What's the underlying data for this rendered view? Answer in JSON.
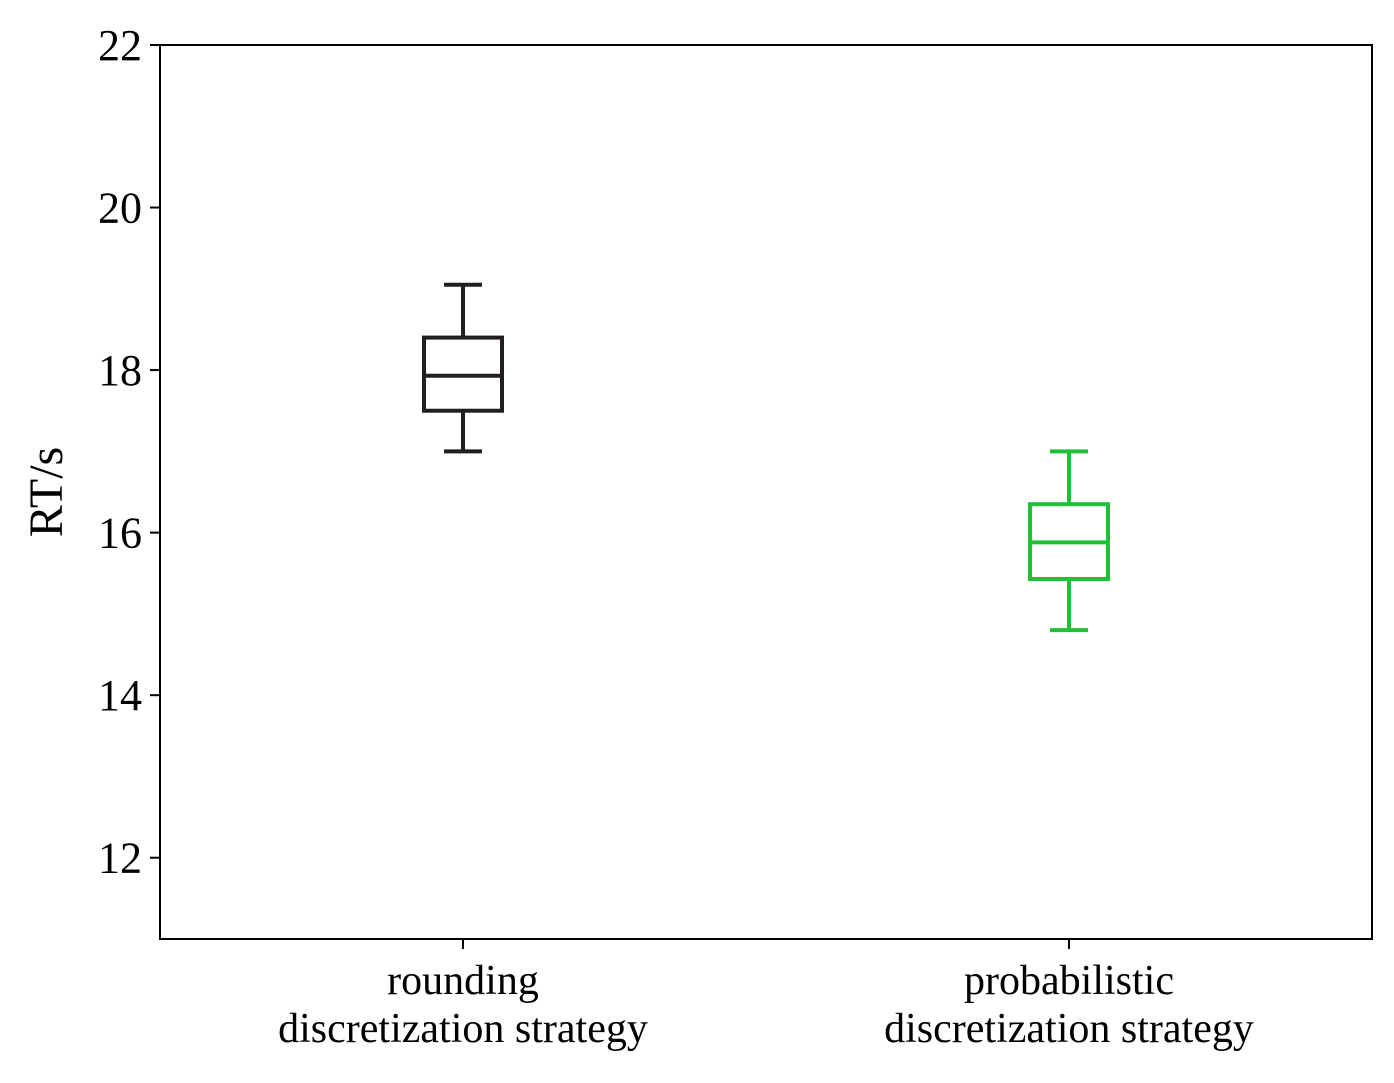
{
  "chart_data": {
    "type": "box",
    "ylabel": "RT/s",
    "xlabel": "",
    "ylim": [
      11,
      22
    ],
    "yticks": [
      12,
      14,
      16,
      18,
      20,
      22
    ],
    "grid": false,
    "categories": [
      [
        "rounding",
        "discretization strategy"
      ],
      [
        "probabilistic",
        "discretization strategy"
      ]
    ],
    "boxes": [
      {
        "color": "#231f20",
        "whisker_low": 17.0,
        "q1": 17.5,
        "median": 17.93,
        "q3": 18.4,
        "whisker_high": 19.05
      },
      {
        "color": "#1ec035",
        "whisker_low": 14.8,
        "q1": 15.43,
        "median": 15.88,
        "q3": 16.35,
        "whisker_high": 17.0
      }
    ]
  }
}
